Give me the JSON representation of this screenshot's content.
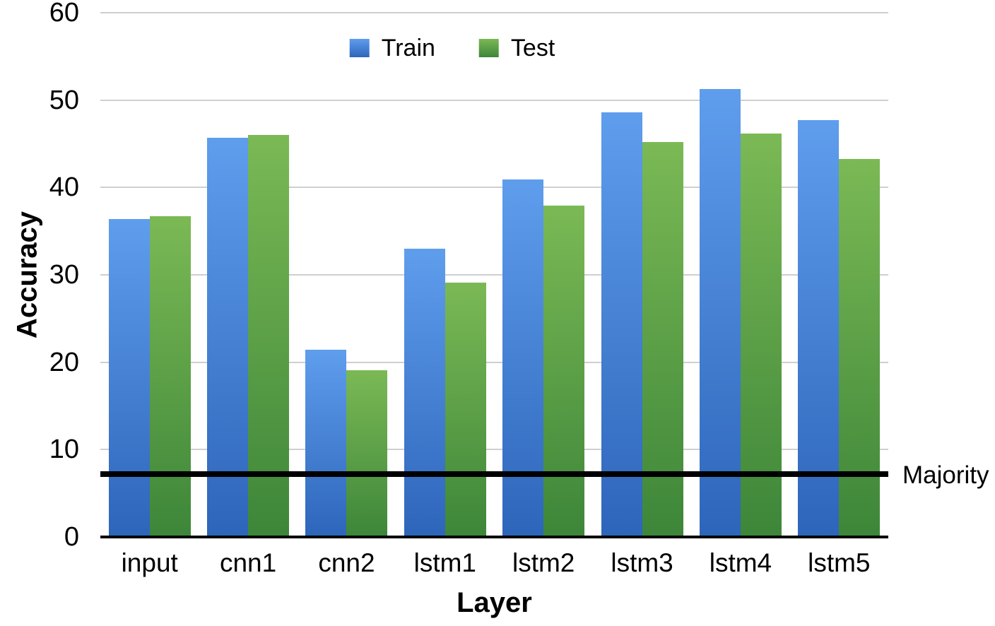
{
  "chart_data": {
    "type": "bar",
    "title": "",
    "xlabel": "Layer",
    "ylabel": "Accuracy",
    "ylim": [
      0,
      60
    ],
    "y_ticks": [
      0,
      10,
      20,
      30,
      40,
      50,
      60
    ],
    "grid": true,
    "legend_position": "top",
    "categories": [
      "input",
      "cnn1",
      "cnn2",
      "lstm1",
      "lstm2",
      "lstm3",
      "lstm4",
      "lstm5"
    ],
    "series": [
      {
        "name": "Train",
        "values": [
          36.4,
          45.7,
          21.4,
          33.0,
          40.9,
          48.6,
          51.3,
          47.7
        ],
        "color_top": "#5f9ded",
        "color_bottom": "#2d65ba"
      },
      {
        "name": "Test",
        "values": [
          36.7,
          46.0,
          19.1,
          29.1,
          37.9,
          45.2,
          46.2,
          43.3
        ],
        "color_top": "#7bb955",
        "color_bottom": "#3d8639"
      }
    ],
    "reference_line": {
      "label": "Majority",
      "value": 7.2,
      "color": "#000000"
    },
    "gridline_color": "#cfcfcf",
    "axis_line_color": "#000000"
  }
}
